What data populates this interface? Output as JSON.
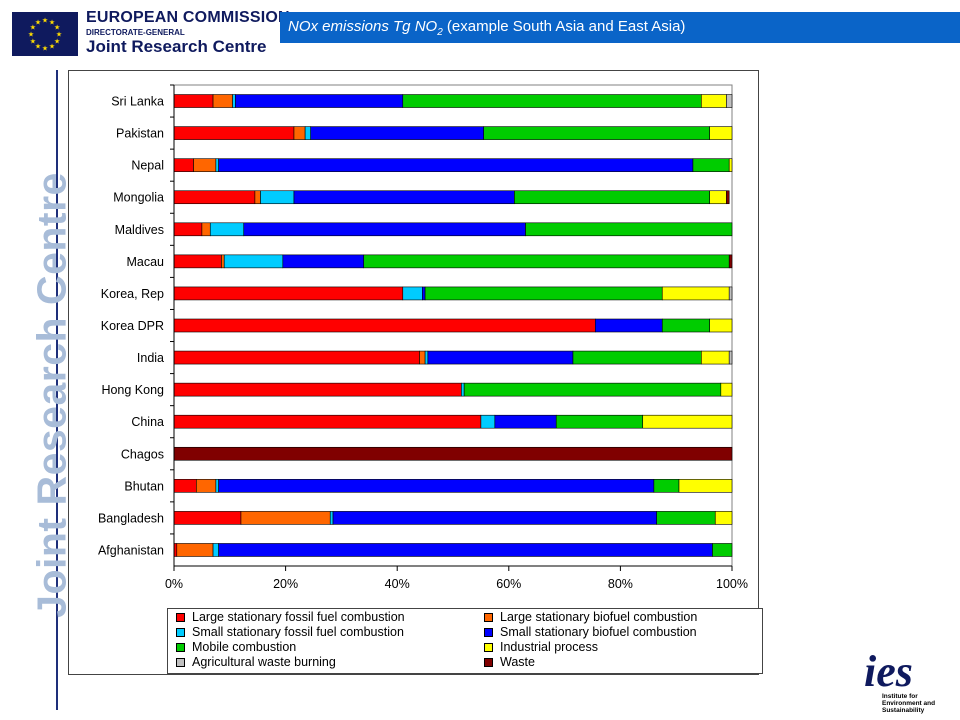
{
  "header": {
    "logo_line1": "EUROPEAN COMMISSION",
    "logo_line2": "DIRECTORATE-GENERAL",
    "logo_line3": "Joint Research Centre",
    "title_main": "NOx emissions Tg NO",
    "title_sub": "2",
    "title_rest": " (example South Asia and East Asia)"
  },
  "side_text": "Joint Research Centre",
  "ies_logo": {
    "mark": "ies",
    "lines": [
      "Institute for",
      "Environment and",
      "Sustainability"
    ]
  },
  "colors": {
    "eu_blue": "#0f1a5e",
    "title_bar": "#0a64c8",
    "side_text": "#a8bcd8"
  },
  "chart_data": {
    "type": "bar",
    "orientation": "horizontal",
    "stacked": "percent",
    "xlim": [
      0,
      100
    ],
    "x_ticks": [
      "0%",
      "20%",
      "40%",
      "60%",
      "80%",
      "100%"
    ],
    "legend_position": "bottom",
    "grid": false,
    "categories": [
      "Sri Lanka",
      "Pakistan",
      "Nepal",
      "Mongolia",
      "Maldives",
      "Macau",
      "Korea, Rep",
      "Korea DPR",
      "India",
      "Hong Kong",
      "China",
      "Chagos",
      "Bhutan",
      "Bangladesh",
      "Afghanistan"
    ],
    "series": [
      {
        "name": "Large stationary fossil fuel combustion",
        "color": "#ff0000",
        "values": [
          7,
          21.5,
          3.5,
          14.5,
          5,
          8.5,
          41,
          75.5,
          44,
          51.5,
          55,
          0,
          4,
          12,
          0.5
        ]
      },
      {
        "name": "Large stationary biofuel combustion",
        "color": "#ff6600",
        "values": [
          3.5,
          2,
          4,
          1,
          1.5,
          0.5,
          0,
          0,
          1,
          0,
          0,
          0,
          3.5,
          16,
          6.5
        ]
      },
      {
        "name": "Small stationary fossil fuel combustion",
        "color": "#00ccff",
        "values": [
          0.5,
          1,
          0.5,
          6,
          6,
          10.5,
          3.5,
          0,
          0.5,
          0.5,
          2.5,
          0,
          0.5,
          0.5,
          1
        ]
      },
      {
        "name": "Small stationary biofuel combustion",
        "color": "#0000ff",
        "values": [
          30,
          31,
          85,
          39.5,
          50.5,
          14.5,
          0.5,
          12,
          26,
          0,
          11,
          0,
          78,
          58,
          88.5
        ]
      },
      {
        "name": "Mobile combustion",
        "color": "#00cc00",
        "values": [
          53.5,
          40.5,
          6.5,
          35,
          37,
          65.5,
          42.5,
          8.5,
          23,
          46,
          15.5,
          0,
          4.5,
          10.5,
          3.5
        ]
      },
      {
        "name": "Industrial process",
        "color": "#ffff00",
        "values": [
          4.5,
          4,
          0.5,
          3,
          0,
          0,
          12,
          4,
          5,
          2,
          16,
          0,
          9.5,
          3,
          0
        ]
      },
      {
        "name": "Agricultural waste burning",
        "color": "#c0c0c0",
        "values": [
          1,
          0,
          0,
          0,
          0,
          0,
          0.5,
          0,
          0.5,
          0,
          0,
          0,
          0,
          0,
          0
        ]
      },
      {
        "name": "Waste",
        "color": "#800000",
        "values": [
          0,
          0,
          0,
          0.5,
          0,
          0.5,
          0,
          0,
          0,
          0,
          0,
          100,
          0,
          0,
          0
        ]
      }
    ]
  }
}
